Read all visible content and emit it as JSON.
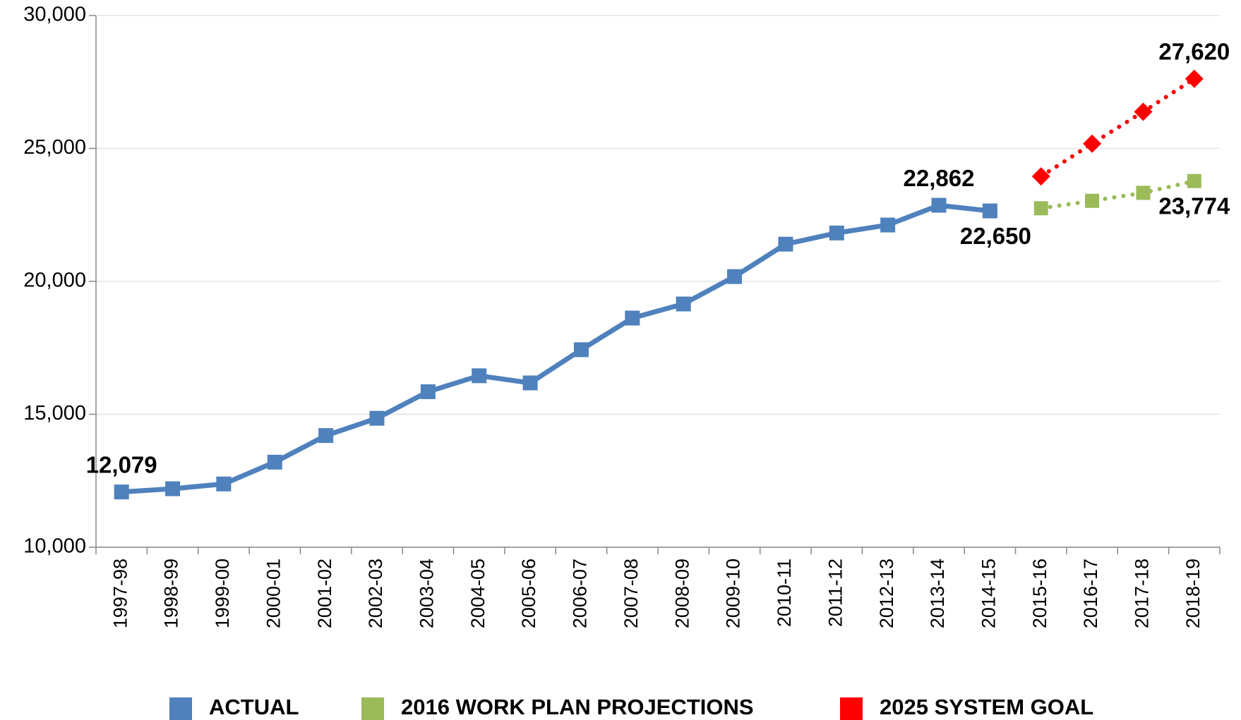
{
  "chart_data": {
    "type": "line",
    "categories": [
      "1997-98",
      "1998-99",
      "1999-00",
      "2000-01",
      "2001-02",
      "2002-03",
      "2003-04",
      "2004-05",
      "2005-06",
      "2006-07",
      "2007-08",
      "2008-09",
      "2009-10",
      "2010-11",
      "2011-12",
      "2012-13",
      "2013-14",
      "2014-15",
      "2015-16",
      "2016-17",
      "2017-18",
      "2018-19"
    ],
    "series": [
      {
        "name": "ACTUAL",
        "color": "#4f81bd",
        "marker": "square",
        "dash": "solid",
        "values": [
          12079,
          12200,
          12380,
          13200,
          14200,
          14850,
          15850,
          16450,
          16180,
          17430,
          18620,
          19150,
          20180,
          21400,
          21820,
          22120,
          22862,
          22650,
          null,
          null,
          null,
          null
        ],
        "value_labels": [
          "12,079",
          null,
          null,
          null,
          null,
          null,
          null,
          null,
          null,
          null,
          null,
          null,
          null,
          null,
          null,
          null,
          "22,862",
          "22,650",
          null,
          null,
          null,
          null
        ]
      },
      {
        "name": "2016 WORK PLAN PROJECTIONS",
        "color": "#9bbb59",
        "marker": "square",
        "dash": "dotted",
        "values": [
          null,
          null,
          null,
          null,
          null,
          null,
          null,
          null,
          null,
          null,
          null,
          null,
          null,
          null,
          null,
          null,
          null,
          null,
          22750,
          23030,
          23330,
          23774
        ],
        "value_labels": [
          null,
          null,
          null,
          null,
          null,
          null,
          null,
          null,
          null,
          null,
          null,
          null,
          null,
          null,
          null,
          null,
          null,
          null,
          null,
          null,
          null,
          "23,774"
        ]
      },
      {
        "name": "2025 SYSTEM GOAL",
        "color": "#ff0000",
        "marker": "diamond",
        "dash": "dotted",
        "values": [
          null,
          null,
          null,
          null,
          null,
          null,
          null,
          null,
          null,
          null,
          null,
          null,
          null,
          null,
          null,
          null,
          null,
          null,
          23950,
          25180,
          26380,
          27620
        ],
        "value_labels": [
          null,
          null,
          null,
          null,
          null,
          null,
          null,
          null,
          null,
          null,
          null,
          null,
          null,
          null,
          null,
          null,
          null,
          null,
          null,
          null,
          null,
          "27,620"
        ]
      }
    ],
    "ylim": [
      10000,
      30000
    ],
    "yticks": [
      {
        "value": 10000,
        "label": "10,000"
      },
      {
        "value": 15000,
        "label": "15,000"
      },
      {
        "value": 20000,
        "label": "20,000"
      },
      {
        "value": 25000,
        "label": "25,000"
      },
      {
        "value": 30000,
        "label": "30,000"
      }
    ],
    "grid": true,
    "legend": "bottom"
  }
}
